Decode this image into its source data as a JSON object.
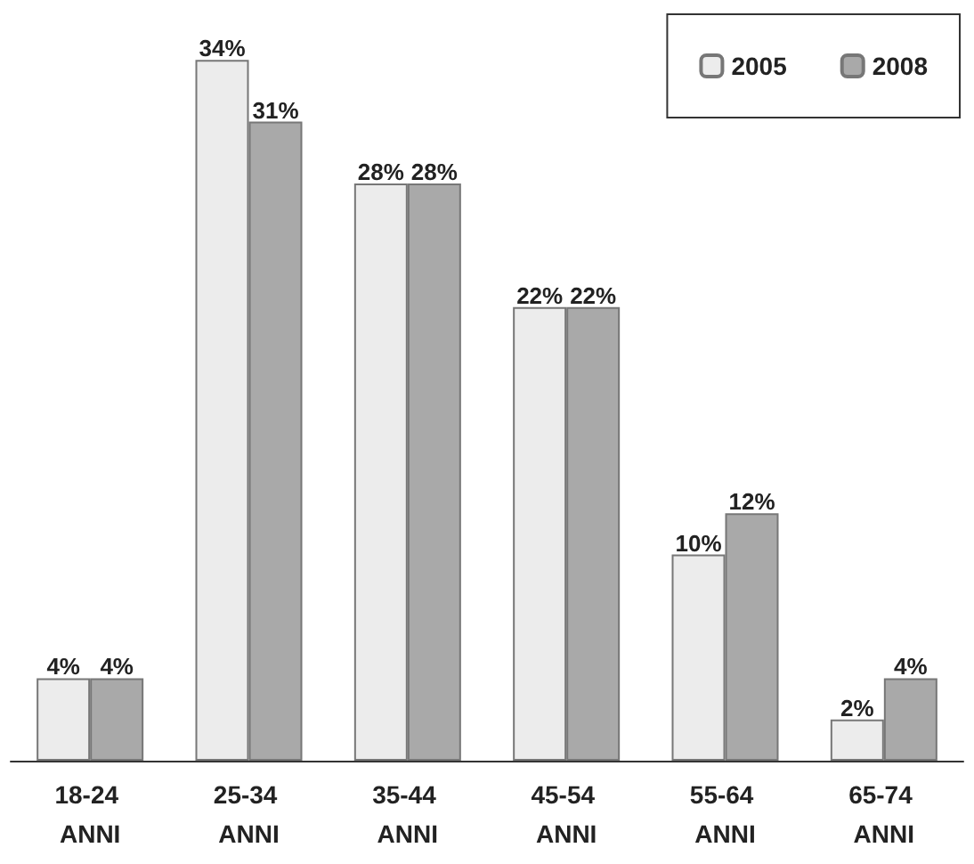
{
  "chart_data": {
    "type": "bar",
    "categories": [
      "18-24 ANNI",
      "25-34 ANNI",
      "35-44 ANNI",
      "45-54 ANNI",
      "55-64 ANNI",
      "65-74 ANNI"
    ],
    "series": [
      {
        "name": "2005",
        "color": "#ececec",
        "values": [
          4,
          34,
          28,
          22,
          10,
          2
        ],
        "value_labels": [
          "4%",
          "34%",
          "28%",
          "22%",
          "10%",
          "2%"
        ]
      },
      {
        "name": "2008",
        "color": "#a9a9a9",
        "values": [
          4,
          31,
          28,
          22,
          12,
          4
        ],
        "value_labels": [
          "4%",
          "31%",
          "28%",
          "22%",
          "12%",
          "4%"
        ]
      }
    ],
    "legend": "top right"
  }
}
